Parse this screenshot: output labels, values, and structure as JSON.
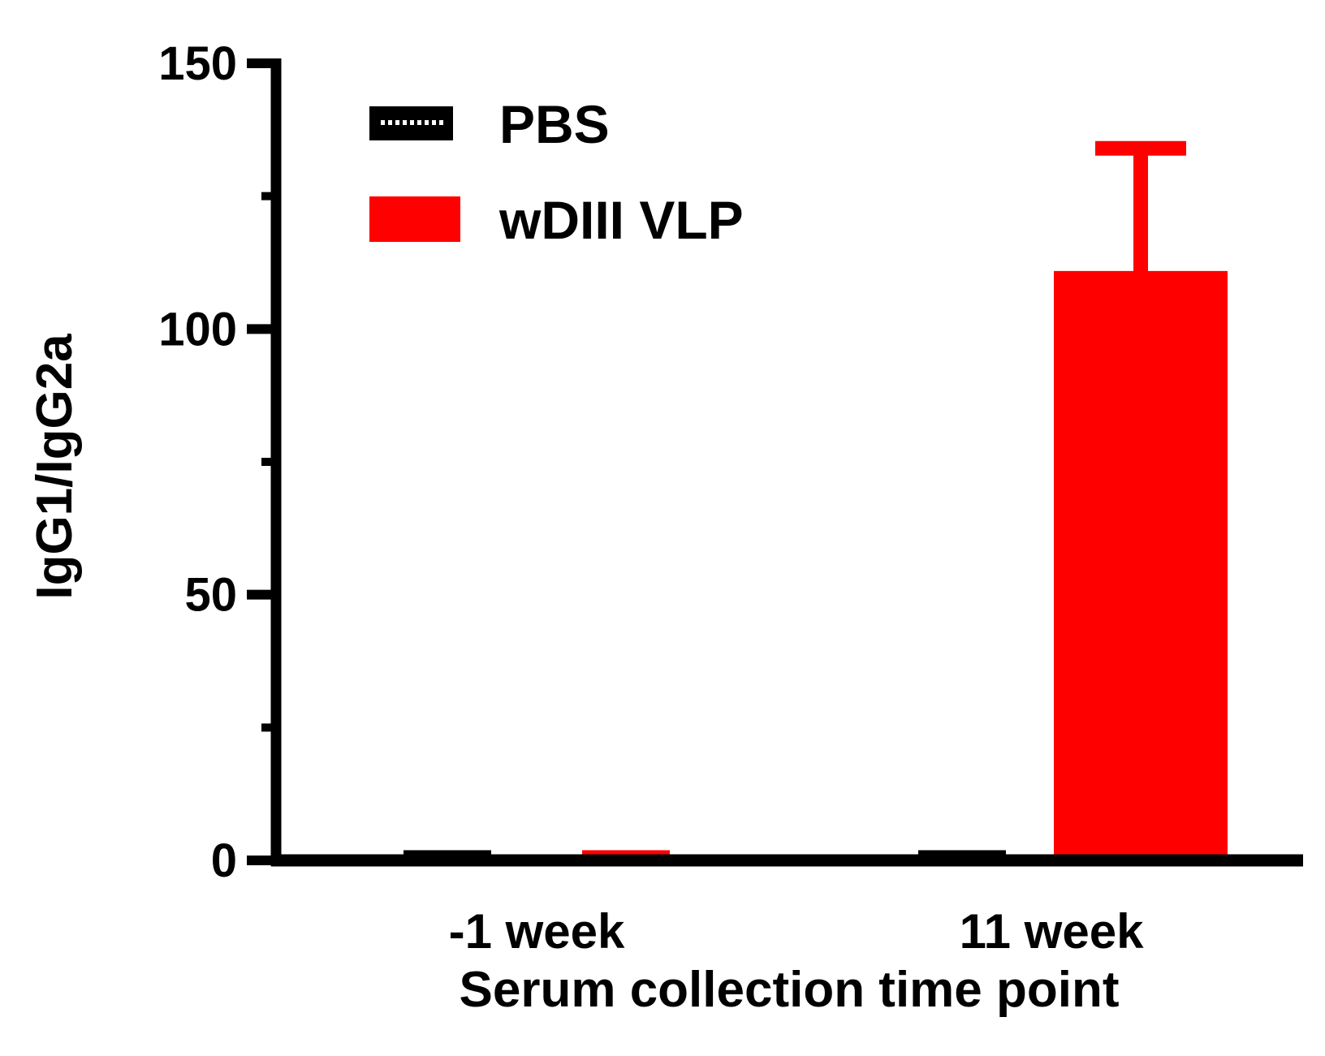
{
  "chart_data": {
    "type": "bar",
    "title": "",
    "xlabel": "Serum collection time point",
    "ylabel": "IgG1/IgG2a",
    "ylim": [
      0,
      150
    ],
    "yticks": [
      0,
      50,
      100,
      150
    ],
    "yticks_minor": [
      25,
      75,
      125
    ],
    "categories": [
      "-1 week",
      "11 week"
    ],
    "series": [
      {
        "name": "PBS",
        "values": [
          1,
          1
        ],
        "error": [
          0,
          0
        ],
        "color": "#000000"
      },
      {
        "name": "wDIII VLP",
        "values": [
          1,
          110
        ],
        "error": [
          0,
          24
        ],
        "color": "#ff0000"
      }
    ],
    "legend_position": "top-left",
    "grid": false
  }
}
